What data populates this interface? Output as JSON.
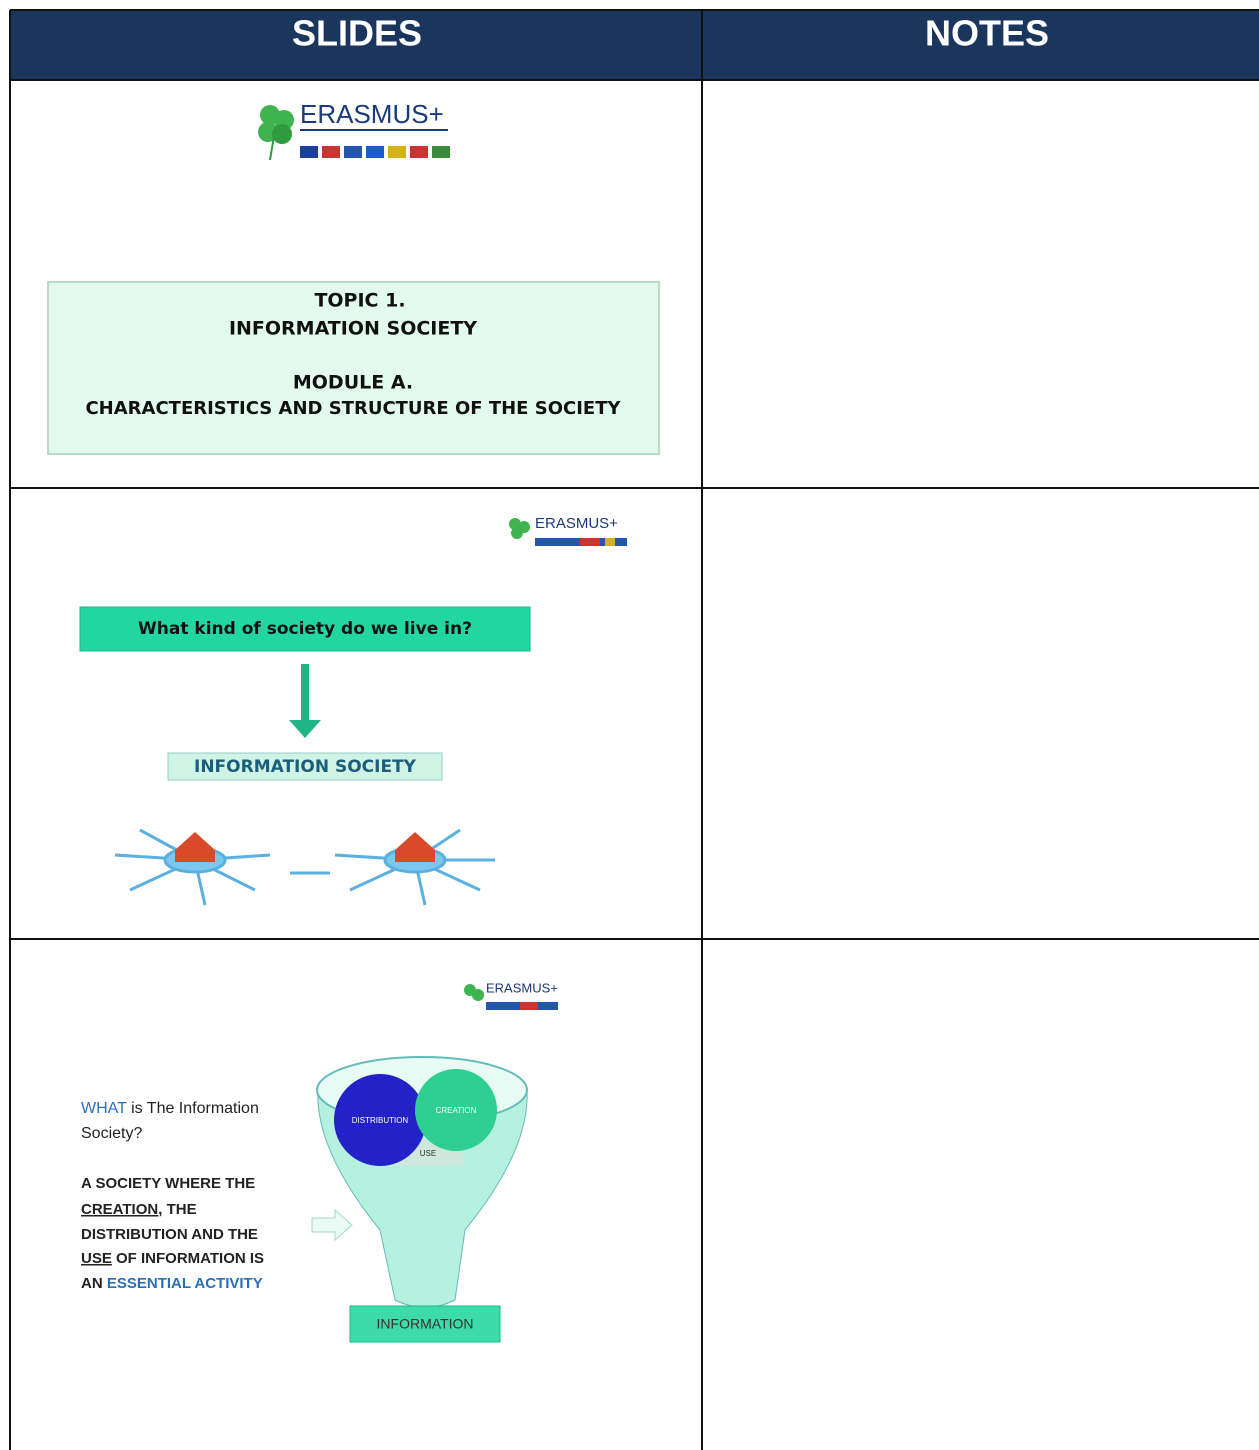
{
  "header": {
    "slides": "SLIDES",
    "notes": "NOTES"
  },
  "slides": [
    {
      "logo": "ERASMUS+",
      "topic": "TOPIC 1.",
      "title": "INFORMATION SOCIETY",
      "module": "MODULE A.",
      "subtitle": "CHARACTERISTICS AND STRUCTURE OF THE SOCIETY"
    },
    {
      "logo": "ERASMUS+",
      "question": "What kind of society do we live in?",
      "answer": "INFORMATION SOCIETY"
    },
    {
      "logo": "ERASMUS+",
      "question_lead": "WHAT",
      "question_line1": "is The Information",
      "question_line2": "Society?",
      "definition": [
        "A SOCIETY WHERE THE",
        "CREATION",
        ", THE",
        "DISTRIBUTION AND THE",
        "USE",
        " OF INFORMATION IS",
        "AN ",
        "ESSENTIAL ACTIVITY"
      ],
      "funnel": {
        "distribution": "DISTRIBUTION",
        "creation": "CREATION",
        "use": "USE",
        "output": "INFORMATION"
      }
    }
  ]
}
